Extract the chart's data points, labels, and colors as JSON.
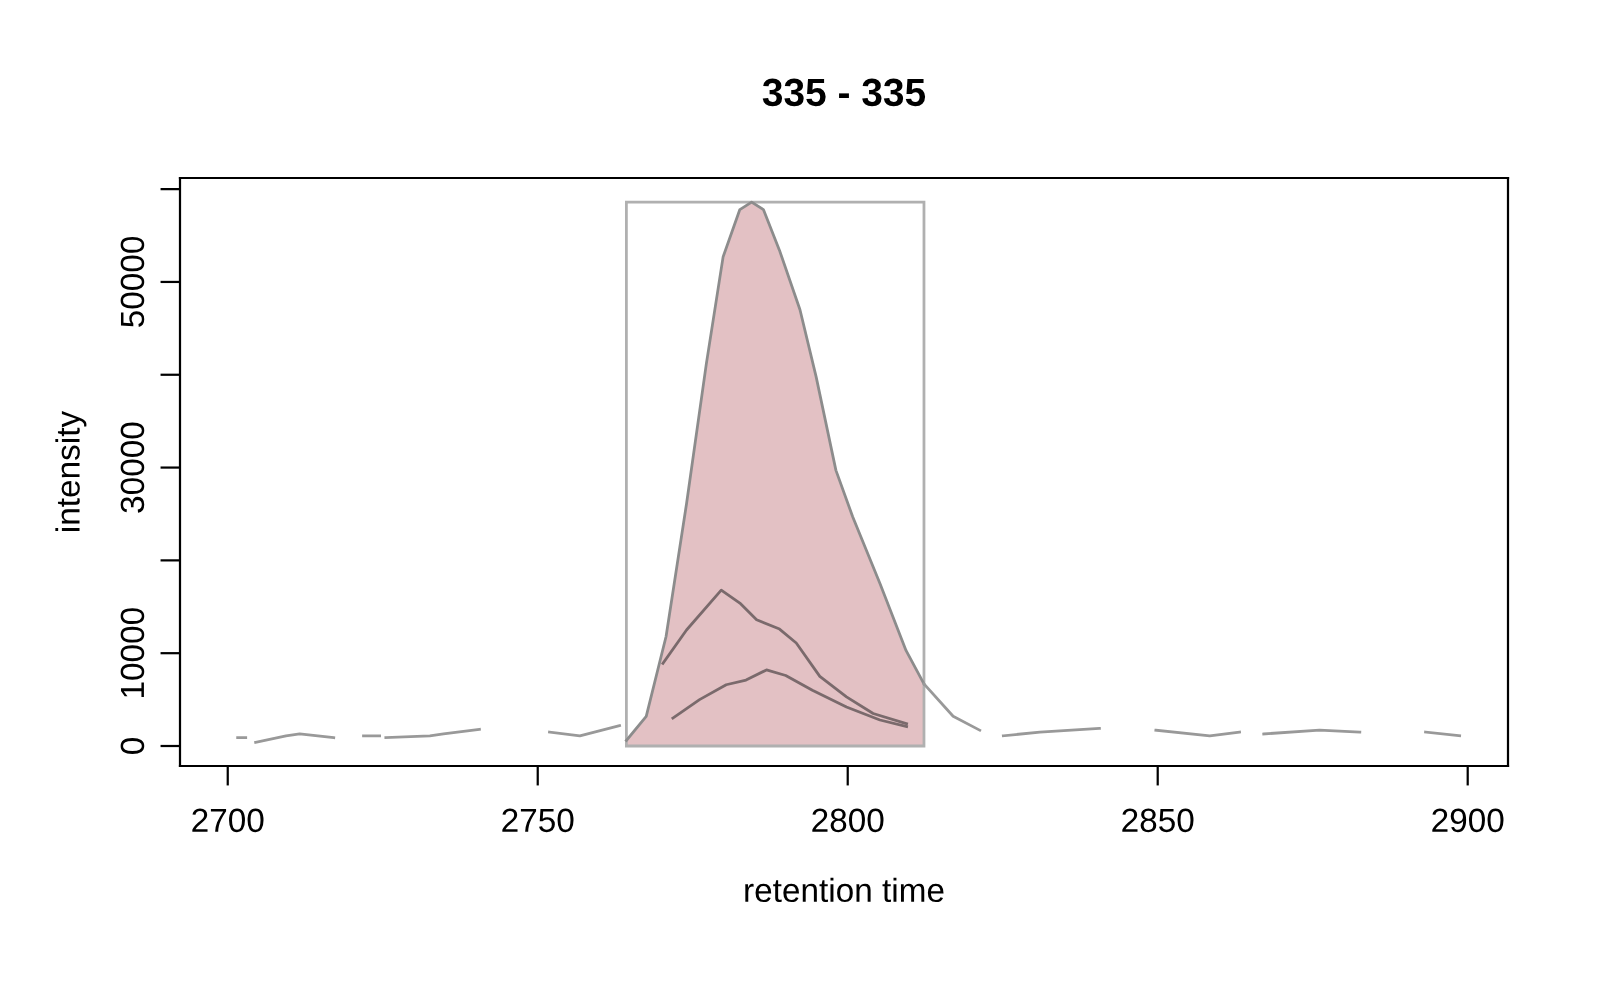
{
  "chart_data": {
    "type": "line",
    "title": "335 - 335",
    "xlabel": "retention time",
    "ylabel": "intensity",
    "xlim": [
      2692.3,
      2906.5
    ],
    "ylim": [
      -2155,
      61200
    ],
    "xticks": [
      2700,
      2750,
      2800,
      2850,
      2900
    ],
    "yticks": [
      0,
      10000,
      {
        "value": 20000,
        "label": null
      },
      30000,
      {
        "value": 40000,
        "label": null
      },
      50000,
      {
        "value": 60000,
        "label": null
      }
    ],
    "grid": false,
    "legend": false,
    "series": [
      {
        "type": "area",
        "color": "#e3c1c4",
        "x": [
          2764.3,
          2767.5,
          2770.7,
          2774.0,
          2777.2,
          2779.9,
          2782.6,
          2784.5,
          2786.4,
          2789.0,
          2792.3,
          2794.9,
          2798.1,
          2800.8,
          2805.2,
          2809.4,
          2812.3
        ],
        "values": [
          600,
          3200,
          11800,
          26100,
          41200,
          52700,
          57800,
          58600,
          57800,
          53400,
          47000,
          39800,
          29700,
          24700,
          17500,
          10300,
          6700
        ]
      },
      {
        "color": "#999999",
        "x": [
          2812.3,
          2817.0,
          2821.3
        ],
        "values": [
          6700,
          3200,
          1700
        ]
      },
      {
        "color": "#7a6a6c",
        "x": [
          2770.2,
          2774.0,
          2779.6,
          2782.6,
          2785.3,
          2789.0,
          2791.7,
          2795.5,
          2799.8,
          2804.1,
          2809.5
        ],
        "values": [
          8900,
          12500,
          16800,
          15400,
          13600,
          12600,
          11100,
          7500,
          5300,
          3500,
          2400
        ]
      },
      {
        "color": "#7a6a6c",
        "x": [
          2771.8,
          2776.1,
          2780.4,
          2783.6,
          2786.9,
          2790.0,
          2794.3,
          2799.8,
          2805.2,
          2809.5
        ],
        "values": [
          3000,
          5000,
          6600,
          7100,
          8200,
          7600,
          6000,
          4200,
          2800,
          2100
        ]
      },
      {
        "color": "#999999",
        "x": [
          2701.6,
          2702.9,
          2703.5,
          2704.5,
          2709.4,
          2711.6,
          2717.1,
          2719.0,
          2721.9,
          2724.5,
          2725.0,
          2725.5,
          2732.6,
          2734.8,
          2740.6,
          2745.0,
          2751.9,
          2756.8,
          2763.2,
          2823.0,
          2825.1,
          2831.0,
          2840.6,
          2845.0,
          2849.7,
          2858.4,
          2863.2,
          2865.0,
          2867.1,
          2876.1,
          2882.6,
          2888.0,
          2893.2,
          2898.7
        ],
        "values": [
          900,
          900,
          null,
          400,
          1100,
          1300,
          900,
          null,
          1100,
          1100,
          null,
          900,
          1100,
          1300,
          1800,
          null,
          1500,
          1100,
          2200,
          null,
          1100,
          1500,
          1900,
          null,
          1700,
          1100,
          1500,
          null,
          1300,
          1700,
          1500,
          null,
          1500,
          1100
        ]
      }
    ]
  }
}
